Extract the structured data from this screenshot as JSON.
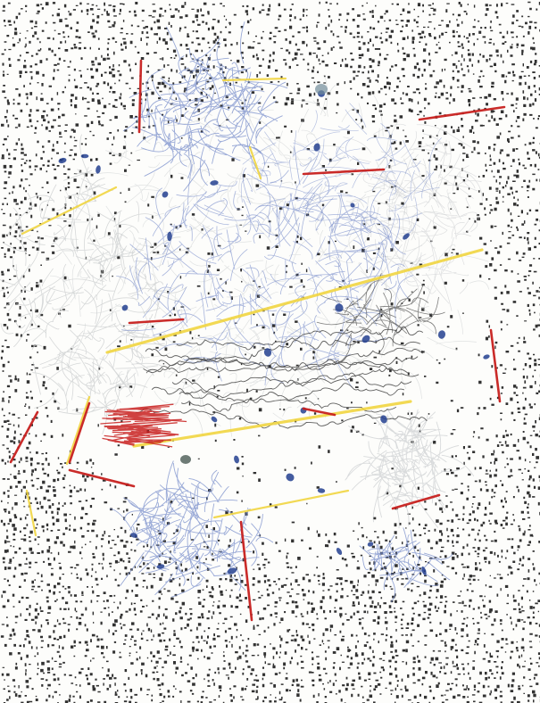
{
  "artwork": {
    "kind": "abstract mixed-media drawing",
    "palette": {
      "paper": "#fdfdfb",
      "dot_ink": "#1c1c1c",
      "graphite_gray": "#c9ccce",
      "blue_pencil": "#6f86c8",
      "blue_deep": "#23408f",
      "red_pencil": "#c8201e",
      "yellow_pencil": "#f1d641",
      "black_scribble": "#2b2b2b"
    },
    "visible_text": []
  }
}
